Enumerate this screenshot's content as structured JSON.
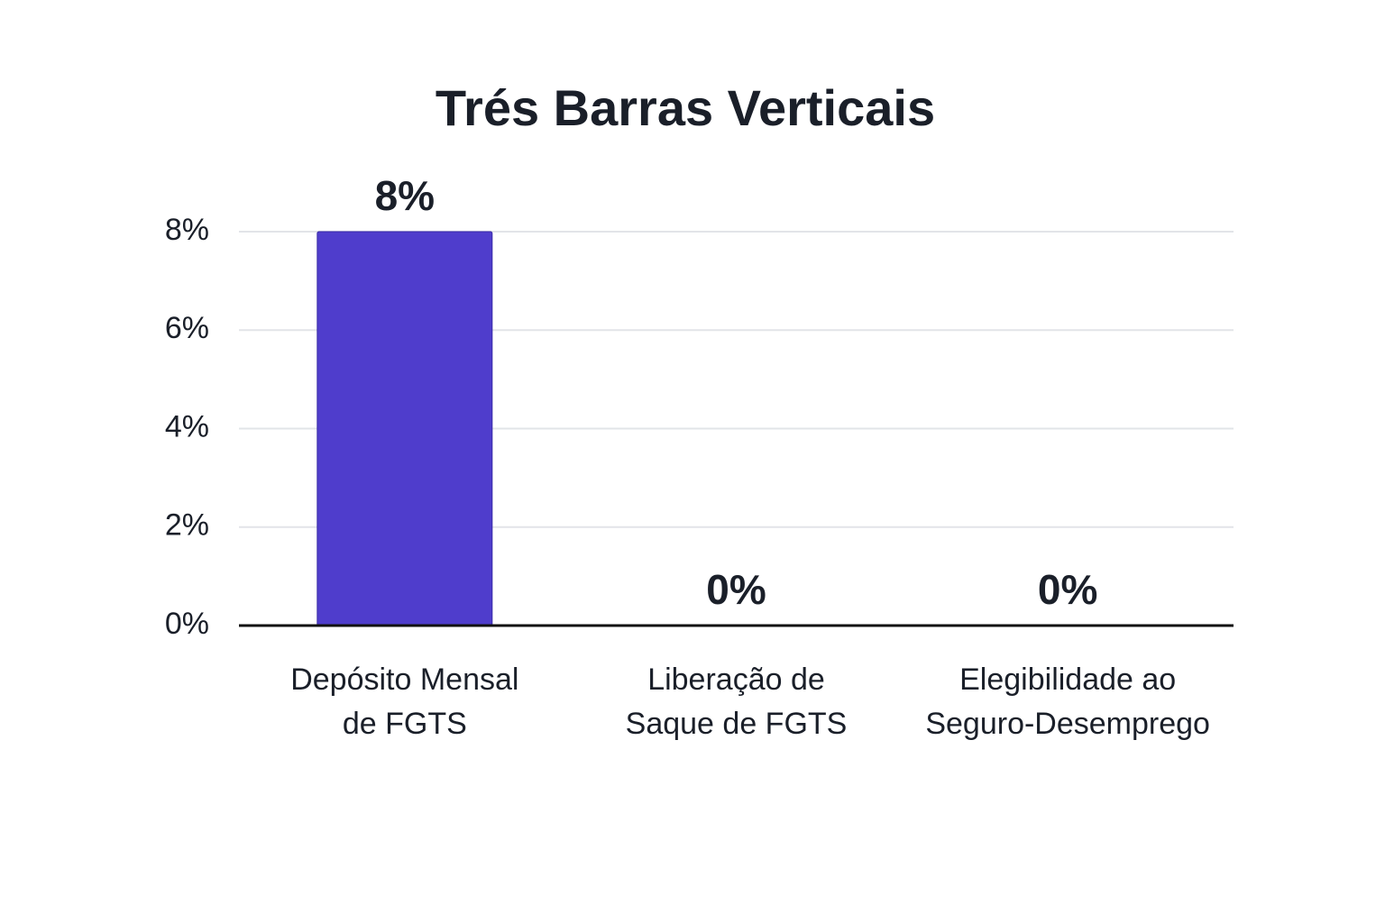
{
  "chart_data": {
    "type": "bar",
    "title": "Trés Barras Verticais",
    "categories": [
      [
        "Depósito Mensal",
        "de FGTS"
      ],
      [
        "Liberação de",
        "Saque de FGTS"
      ],
      [
        "Elegibilidade ao",
        "Seguro-Desemprego"
      ]
    ],
    "values": [
      8,
      0,
      0
    ],
    "value_labels": [
      "8%",
      "0%",
      "0%"
    ],
    "color": "#4f3dcc",
    "ylim": [
      0,
      8
    ],
    "yticks": [
      {
        "value": 0,
        "label": "0%"
      },
      {
        "value": 2,
        "label": "2%"
      },
      {
        "value": 4,
        "label": "4%"
      },
      {
        "value": 6,
        "label": "6%"
      },
      {
        "value": 8,
        "label": "8%"
      }
    ],
    "grid": true
  }
}
